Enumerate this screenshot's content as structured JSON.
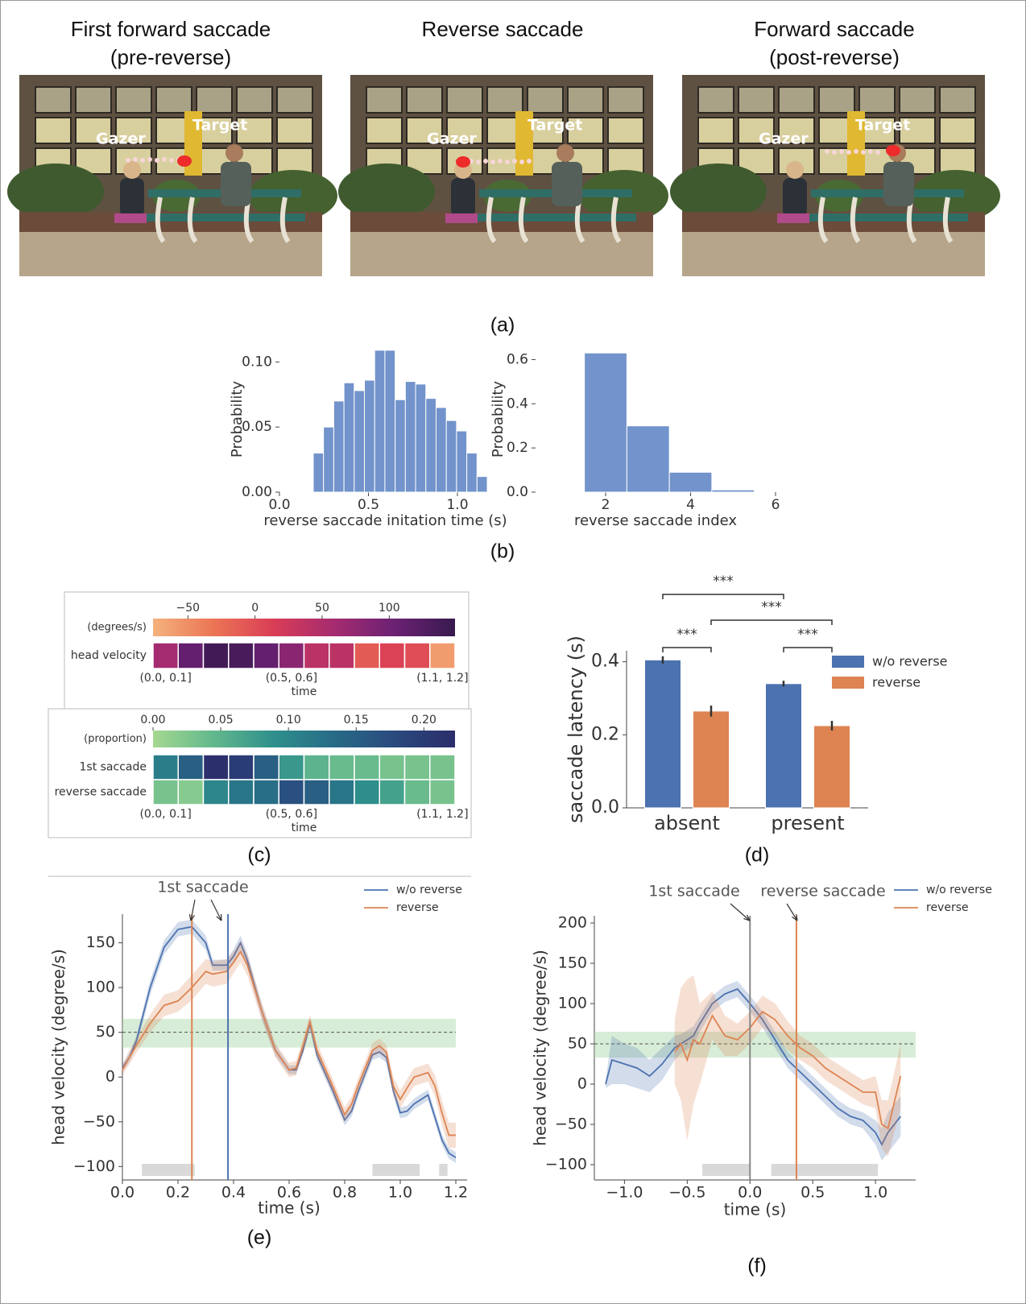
{
  "photos": {
    "titles": [
      [
        "First forward saccade",
        "(pre-reverse)"
      ],
      [
        "Reverse saccade"
      ],
      [
        "Forward saccade",
        "(post-reverse)"
      ]
    ],
    "labels": [
      [
        "Gazer",
        "Target"
      ],
      [
        "Gazer",
        "Target"
      ],
      [
        "Gazer",
        "Target"
      ]
    ]
  },
  "captions": [
    "(a)",
    "(b)",
    "(c)",
    "(d)",
    "(e)",
    "(f)"
  ],
  "chart_data": [
    {
      "type": "histogram",
      "xlabel": "reverse saccade initation time (s)",
      "ylabel": "Probability",
      "color": "#7293cb",
      "bins": [
        0.19,
        0.2475,
        0.305,
        0.3625,
        0.42,
        0.4775,
        0.535,
        0.5925,
        0.65,
        0.7075,
        0.765,
        0.8225,
        0.88,
        0.9375,
        0.995,
        1.0525,
        1.11,
        1.1675
      ],
      "values": [
        0.03,
        0.05,
        0.07,
        0.084,
        0.078,
        0.086,
        0.109,
        0.109,
        0.071,
        0.085,
        0.083,
        0.072,
        0.065,
        0.055,
        0.047,
        0.03,
        0.012
      ],
      "xlim": [
        0,
        1.19
      ],
      "ylim": [
        0,
        0.112
      ],
      "xticks": [
        {
          "value": 0,
          "label": "0.0"
        },
        0.5,
        {
          "value": 1,
          "label": "1.0"
        }
      ],
      "yticks": [
        {
          "value": 0,
          "label": "0.00"
        },
        0.05,
        {
          "value": 0.1,
          "label": "0.10"
        }
      ]
    },
    {
      "type": "histogram",
      "xlabel": "reverse saccade index",
      "ylabel": "Probability",
      "color": "#7293cb",
      "bins": [
        1.5,
        2.5,
        3.5,
        4.5,
        5.5
      ],
      "values": [
        0.63,
        0.3,
        0.09,
        0.01
      ],
      "xlim": [
        0.35,
        6
      ],
      "ylim": [
        0,
        0.66
      ],
      "xticks": [
        2,
        4,
        6
      ],
      "yticks": [
        {
          "value": 0,
          "label": "0.0"
        },
        0.2,
        0.4,
        0.6
      ]
    },
    {
      "type": "heatmap",
      "xlabel": "time",
      "colorbar_label": "(degrees/s)",
      "rows": [
        "head velocity"
      ],
      "categories": [
        "(0.0, 0.1]",
        null,
        null,
        null,
        null,
        "(0.5, 0.6]",
        null,
        null,
        null,
        null,
        null,
        "(1.1, 1.2]"
      ],
      "values": [
        [
          60,
          110,
          140,
          135,
          110,
          80,
          40,
          40,
          -10,
          10,
          0,
          -60
        ]
      ],
      "clim": [
        -76,
        149
      ],
      "cticks": [
        {
          "value": -50,
          "label": "−50"
        },
        0,
        50,
        100
      ],
      "colormap": [
        "#f4b27c",
        "#eb7555",
        "#d93d56",
        "#a52b70",
        "#6b2173",
        "#381a4f"
      ]
    },
    {
      "type": "heatmap",
      "xlabel": "time",
      "colorbar_label": "(proportion)",
      "rows": [
        "1st saccade",
        "reverse saccade"
      ],
      "categories": [
        "(0.0, 0.1]",
        null,
        null,
        null,
        null,
        "(0.5, 0.6]",
        null,
        null,
        null,
        null,
        null,
        "(1.1, 1.2]"
      ],
      "values": [
        [
          0.11,
          0.15,
          0.22,
          0.2,
          0.15,
          0.08,
          0.05,
          0.04,
          0.04,
          0.03,
          0.03,
          0.03
        ],
        [
          0.03,
          0.02,
          0.1,
          0.12,
          0.13,
          0.17,
          0.15,
          0.12,
          0.09,
          0.07,
          0.04,
          0.03
        ]
      ],
      "clim": [
        0,
        0.223
      ],
      "cticks": [
        {
          "value": 0,
          "label": "0.00"
        },
        0.05,
        {
          "value": 0.1,
          "label": "0.10"
        },
        0.15,
        {
          "value": 0.2,
          "label": "0.20"
        }
      ],
      "colormap": [
        "#a5d890",
        "#62b88d",
        "#2e8f8c",
        "#276b86",
        "#2a4a7e",
        "#2b2d6b"
      ]
    },
    {
      "type": "bar",
      "ylabel": "saccade latency (s)",
      "categories": [
        "absent",
        "present"
      ],
      "series": [
        {
          "name": "w/o reverse",
          "color": "#4c72b0",
          "values": [
            0.405,
            0.34
          ],
          "errors": [
            0.01,
            0.008
          ]
        },
        {
          "name": "reverse",
          "color": "#dd8452",
          "values": [
            0.265,
            0.225
          ],
          "errors": [
            0.015,
            0.013
          ]
        }
      ],
      "ylim": [
        0,
        0.43
      ],
      "yticks": [
        {
          "value": 0,
          "label": "0.0"
        },
        0.2,
        0.4
      ],
      "annotations": [
        "***",
        "***",
        "***",
        "***"
      ]
    },
    {
      "type": "line",
      "xlabel": "time (s)",
      "ylabel": "head velocity (degree/s)",
      "annotations": [
        "1st saccade"
      ],
      "x": [
        0,
        0.025,
        0.05,
        0.1,
        0.15,
        0.2,
        0.25,
        0.3,
        0.325,
        0.375,
        0.4,
        0.425,
        0.45,
        0.5,
        0.55,
        0.6,
        0.625,
        0.65,
        0.675,
        0.7,
        0.75,
        0.8,
        0.825,
        0.85,
        0.9,
        0.925,
        0.95,
        0.975,
        1.0,
        1.025,
        1.05,
        1.1,
        1.125,
        1.15,
        1.175,
        1.2
      ],
      "series": [
        {
          "name": "w/o reverse",
          "color": "#4c72b0",
          "values": [
            10,
            22,
            40,
            100,
            145,
            165,
            168,
            150,
            125,
            125,
            135,
            150,
            130,
            75,
            30,
            8,
            8,
            30,
            60,
            25,
            -10,
            -48,
            -38,
            -15,
            25,
            28,
            22,
            -15,
            -40,
            -38,
            -30,
            -20,
            -45,
            -70,
            -85,
            -90
          ],
          "errors": [
            4,
            5,
            6,
            8,
            8,
            8,
            8,
            8,
            6,
            6,
            8,
            8,
            8,
            8,
            6,
            5,
            5,
            5,
            6,
            6,
            6,
            6,
            6,
            6,
            6,
            6,
            6,
            6,
            6,
            6,
            6,
            6,
            6,
            6,
            6,
            6
          ]
        },
        {
          "name": "reverse",
          "color": "#dd8452",
          "values": [
            8,
            22,
            35,
            60,
            80,
            85,
            100,
            118,
            115,
            118,
            128,
            140,
            125,
            75,
            30,
            8,
            10,
            35,
            62,
            30,
            -5,
            -42,
            -30,
            -8,
            30,
            35,
            28,
            -10,
            -25,
            -12,
            0,
            5,
            -10,
            -40,
            -65,
            -65
          ],
          "errors": [
            6,
            8,
            8,
            10,
            12,
            12,
            14,
            14,
            14,
            14,
            12,
            12,
            12,
            10,
            8,
            8,
            8,
            8,
            8,
            8,
            8,
            8,
            8,
            8,
            8,
            8,
            8,
            10,
            10,
            10,
            10,
            10,
            12,
            14,
            14,
            14
          ]
        }
      ],
      "vlines": [
        {
          "x": 0.25,
          "color": "#dd8452"
        },
        {
          "x": 0.38,
          "color": "#4c72b0"
        }
      ],
      "band": [
        33,
        65
      ],
      "band_color": "#a8d8a8",
      "reference_line": 50,
      "shaded_x": [
        [
          0.07,
          0.26
        ],
        [
          0.9,
          1.07
        ],
        [
          1.14,
          1.17
        ]
      ],
      "legend": "upper right",
      "xlim": [
        0,
        1.2
      ],
      "ylim": [
        -115,
        182
      ],
      "xticks": [
        {
          "value": 0,
          "label": "0.0"
        },
        0.2,
        0.4,
        0.6,
        0.8,
        {
          "value": 1,
          "label": "1.0"
        },
        1.2
      ],
      "yticks": [
        {
          "value": -100,
          "label": "−100"
        },
        {
          "value": -50,
          "label": "−50"
        },
        0,
        50,
        100,
        150
      ]
    },
    {
      "type": "line",
      "xlabel": "time (s)",
      "ylabel": "head velocity (degree/s)",
      "annotations": [
        "1st saccade",
        "reverse saccade"
      ],
      "x": [
        -1.15,
        -1.1,
        -1.0,
        -0.9,
        -0.8,
        -0.7,
        -0.6,
        -0.55,
        -0.5,
        -0.45,
        -0.4,
        -0.3,
        -0.2,
        -0.1,
        0,
        0.1,
        0.2,
        0.3,
        0.4,
        0.5,
        0.6,
        0.7,
        0.8,
        0.9,
        1.0,
        1.05,
        1.1,
        1.2
      ],
      "series": [
        {
          "name": "w/o reverse",
          "color": "#4c72b0",
          "values": [
            0,
            30,
            25,
            20,
            10,
            25,
            45,
            50,
            55,
            60,
            75,
            100,
            112,
            118,
            100,
            80,
            55,
            30,
            15,
            0,
            -15,
            -30,
            -40,
            -45,
            -60,
            -75,
            -60,
            -40
          ],
          "errors": [
            5,
            30,
            25,
            25,
            20,
            20,
            15,
            12,
            12,
            12,
            10,
            10,
            10,
            10,
            10,
            10,
            10,
            10,
            10,
            10,
            10,
            10,
            10,
            10,
            15,
            20,
            25,
            25
          ]
        },
        {
          "name": "reverse",
          "color": "#dd8452",
          "values": [
            null,
            null,
            null,
            null,
            null,
            null,
            40,
            50,
            30,
            55,
            50,
            85,
            60,
            55,
            70,
            90,
            80,
            60,
            45,
            35,
            20,
            10,
            0,
            -10,
            -10,
            -50,
            -55,
            10
          ],
          "errors": [
            null,
            null,
            null,
            null,
            null,
            null,
            40,
            70,
            100,
            80,
            50,
            30,
            25,
            20,
            20,
            20,
            20,
            18,
            15,
            15,
            15,
            15,
            15,
            15,
            20,
            30,
            35,
            40
          ]
        }
      ],
      "vlines": [
        {
          "x": 0,
          "color": "#888888"
        },
        {
          "x": 0.37,
          "color": "#dd8452"
        }
      ],
      "band": [
        33,
        65
      ],
      "band_color": "#a8d8a8",
      "reference_line": 50,
      "shaded_x": [
        [
          -0.38,
          0
        ],
        [
          0.17,
          1.02
        ]
      ],
      "legend": "upper right",
      "xlim": [
        -1.24,
        1.32
      ],
      "ylim": [
        -119,
        209
      ],
      "xticks": [
        {
          "value": -1,
          "label": "−1.0"
        },
        {
          "value": -0.5,
          "label": "−0.5"
        },
        {
          "value": 0,
          "label": "0.0"
        },
        0.5,
        {
          "value": 1,
          "label": "1.0"
        }
      ],
      "yticks": [
        {
          "value": -100,
          "label": "−100"
        },
        {
          "value": -50,
          "label": "−50"
        },
        0,
        50,
        100,
        150,
        200
      ]
    }
  ]
}
